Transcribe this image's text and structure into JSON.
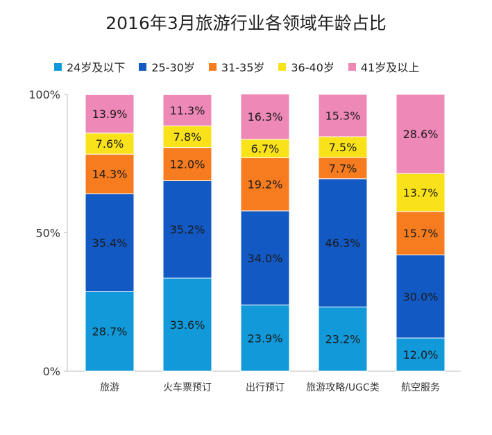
{
  "chart_data": {
    "type": "bar",
    "stacked": true,
    "title": "2016年3月旅游行业各领域年龄占比",
    "categories": [
      "旅游",
      "火车票预订",
      "出行预订",
      "旅游攻略/UGC类",
      "航空服务"
    ],
    "series": [
      {
        "name": "24岁及以下",
        "color": "#1199D9",
        "values": [
          28.7,
          33.6,
          23.9,
          23.2,
          12.0
        ]
      },
      {
        "name": "25-30岁",
        "color": "#1359C3",
        "values": [
          35.4,
          35.2,
          34.0,
          46.3,
          30.0
        ]
      },
      {
        "name": "31-35岁",
        "color": "#F67C1F",
        "values": [
          14.3,
          12.0,
          19.2,
          7.7,
          15.7
        ]
      },
      {
        "name": "36-40岁",
        "color": "#FAE21A",
        "values": [
          7.6,
          7.8,
          6.7,
          7.5,
          13.7
        ]
      },
      {
        "name": "41岁及以上",
        "color": "#EE88B6",
        "values": [
          13.9,
          11.3,
          16.3,
          15.3,
          28.6
        ]
      }
    ],
    "yticks": [
      "0%",
      "50%",
      "100%"
    ],
    "ylim": [
      0,
      100
    ],
    "value_suffix": "%",
    "legend_position": "top",
    "grid": false
  }
}
